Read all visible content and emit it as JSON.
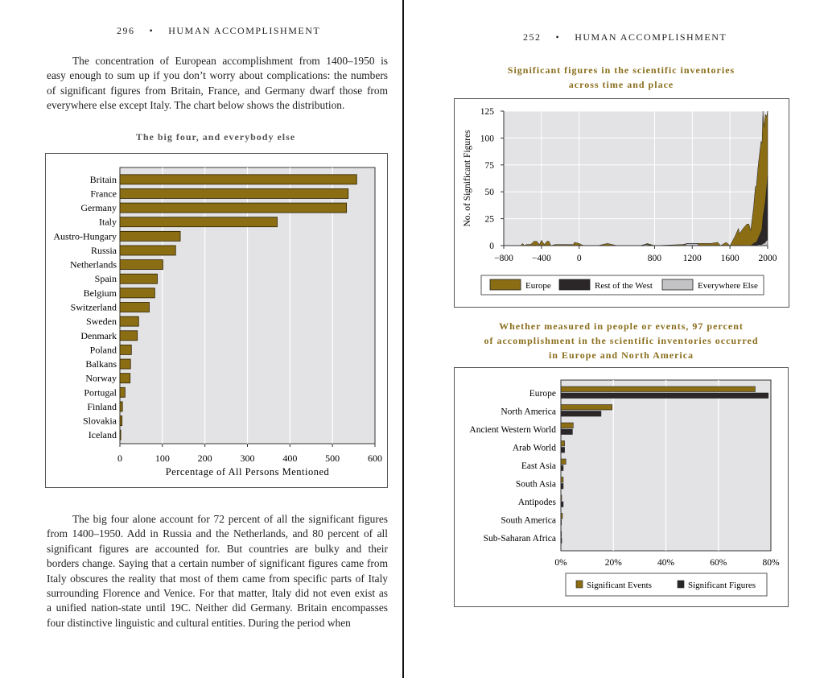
{
  "left_page": {
    "page_number": "296",
    "running_head": "HUMAN ACCOMPLISHMENT",
    "bullet": "•",
    "para1": [
      "The concentration of European accomplishment from 1400–1950 is",
      "easy enough to sum up if you don’t worry about complications: the numbers",
      "of significant figures from Britain, France, and Germany dwarf those from",
      "everywhere else except Italy. The chart below shows the distribution."
    ],
    "para2": [
      "The big four alone account for 72 percent of all the significant figures",
      "from 1400–1950. Add in Russia and the Netherlands, and 80 percent of all",
      "significant figures are accounted for. But countries are bulky and their",
      "borders change. Saying that a certain number of significant figures came from",
      "Italy obscures the reality that most of them came from specific parts of Italy",
      "surrounding Florence and Venice. For that matter, Italy did not even exist as",
      "a unified nation-state until 19C. Neither did Germany. Britain encompasses",
      "four distinctive linguistic and cultural entities. During the period when"
    ]
  },
  "right_page": {
    "page_number": "252",
    "running_head": "HUMAN ACCOMPLISHMENT",
    "bullet": "•"
  },
  "colors": {
    "europe": "#8b6d14",
    "rest": "#2b2627",
    "else": "#c3c3c5",
    "plot_bg": "#e3e3e5",
    "title_gold": "#8a6e1c"
  },
  "chart_data": [
    {
      "type": "bar",
      "title": "The big four, and everybody else",
      "xlabel": "Percentage of All Persons Mentioned",
      "xlim": [
        0,
        600
      ],
      "xticks": [
        "0",
        "100",
        "200",
        "300",
        "400",
        "500",
        "600"
      ],
      "grid": true,
      "categories": [
        "Britain",
        "France",
        "Germany",
        "Italy",
        "Austro-Hungary",
        "Russia",
        "Netherlands",
        "Spain",
        "Belgium",
        "Switzerland",
        "Sweden",
        "Denmark",
        "Poland",
        "Balkans",
        "Norway",
        "Portugal",
        "Finland",
        "Slovakia",
        "Iceland"
      ],
      "values": [
        557,
        537,
        533,
        370,
        142,
        131,
        101,
        88,
        82,
        69,
        44,
        41,
        27,
        25,
        24,
        12,
        6,
        5,
        2
      ]
    },
    {
      "type": "area",
      "title": [
        "Significant figures in the scientific inventories",
        "across time and place"
      ],
      "ylabel": "No. of Significant Figures",
      "xlim": [
        -800,
        2000
      ],
      "ylim": [
        0,
        125
      ],
      "xticks": [
        "−800",
        "−400",
        "0",
        "800",
        "1200",
        "1600",
        "2000"
      ],
      "xtick_values": [
        -800,
        -400,
        0,
        800,
        1200,
        1600,
        2000
      ],
      "yticks": [
        "0",
        "25",
        "50",
        "75",
        "100",
        "125"
      ],
      "grid": true,
      "stacked": true,
      "legend": "bottom",
      "x": [
        -800,
        -620,
        -600,
        -580,
        -560,
        -520,
        -500,
        -480,
        -450,
        -420,
        -400,
        -370,
        -340,
        -320,
        -300,
        -250,
        -150,
        -60,
        -50,
        0,
        20,
        50,
        100,
        200,
        250,
        300,
        400,
        650,
        700,
        720,
        800,
        1100,
        1150,
        1250,
        1280,
        1400,
        1470,
        1500,
        1560,
        1600,
        1650,
        1690,
        1700,
        1740,
        1780,
        1800,
        1820,
        1850,
        1870,
        1880,
        1900,
        1930,
        1940,
        1950,
        1960,
        1975,
        1990,
        2000
      ],
      "series": [
        {
          "name": "Everywhere Else",
          "values": [
            0,
            0,
            0,
            0,
            0,
            0,
            0,
            0,
            0,
            0,
            0,
            0,
            0,
            0,
            0,
            0,
            0,
            0,
            0,
            0,
            0,
            0,
            0,
            0,
            0,
            0,
            0,
            0,
            1,
            1,
            0,
            0,
            2,
            2,
            0,
            0,
            0,
            0,
            0,
            0,
            0,
            0,
            0,
            0,
            0,
            0,
            0,
            0,
            0,
            0,
            1,
            1,
            1,
            2,
            2,
            3,
            5,
            5
          ]
        },
        {
          "name": "Rest of the West",
          "values": [
            0,
            0,
            0,
            0,
            0,
            0,
            0,
            0,
            0,
            0,
            0,
            0,
            0,
            0,
            0,
            0,
            0,
            0,
            0,
            0,
            0,
            0,
            0,
            0,
            0,
            0,
            0,
            0,
            0,
            0,
            0,
            0,
            0,
            0,
            0,
            0,
            0,
            0,
            0,
            0,
            0,
            0,
            0,
            0,
            0,
            0,
            0,
            2,
            3,
            3,
            6,
            12,
            15,
            25,
            30,
            38,
            50,
            60
          ]
        },
        {
          "name": "Europe",
          "values": [
            0,
            0,
            2,
            0,
            1,
            1,
            2,
            4,
            4,
            1,
            5,
            1,
            4,
            4,
            0,
            1,
            1,
            1,
            3,
            2,
            1,
            0,
            0,
            0,
            1,
            2,
            0,
            0,
            0,
            1,
            0,
            1,
            0,
            0,
            2,
            2,
            3,
            0,
            3,
            0,
            8,
            16,
            11,
            16,
            20,
            20,
            14,
            33,
            52,
            52,
            68,
            84,
            79,
            98,
            78,
            81,
            65,
            60
          ]
        }
      ]
    },
    {
      "type": "bar",
      "orientation": "horizontal",
      "title": [
        "Whether measured in people or events, 97 percent",
        "of accomplishment in the scientific inventories occurred",
        "in Europe and North America"
      ],
      "xlim": [
        0,
        80
      ],
      "xticks": [
        "0%",
        "20%",
        "40%",
        "60%",
        "80%"
      ],
      "grid": true,
      "legend": "bottom",
      "categories": [
        "Europe",
        "North America",
        "Ancient Western World",
        "Arab World",
        "East Asia",
        "South Asia",
        "Antipodes",
        "South America",
        "Sub-Saharan Africa"
      ],
      "series": [
        {
          "name": "Significant Events",
          "values": [
            74,
            19.5,
            4.7,
            1.4,
            1.9,
            0.9,
            0.3,
            0.6,
            0.1
          ]
        },
        {
          "name": "Significant Figures",
          "values": [
            79,
            15.3,
            4.4,
            1.4,
            0.9,
            0.9,
            0.9,
            0.1,
            0.3
          ]
        }
      ]
    }
  ]
}
